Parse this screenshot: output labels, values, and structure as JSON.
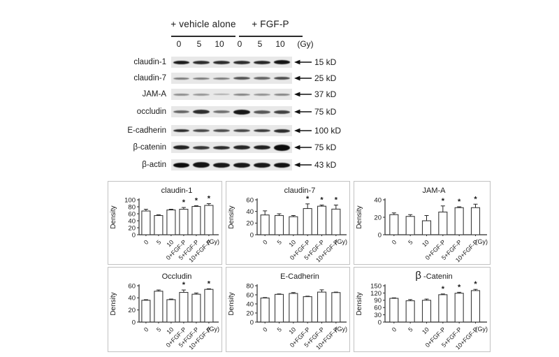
{
  "blot": {
    "group_labels": [
      "+ vehicle alone",
      "+ FGF-P"
    ],
    "doses": [
      "0",
      "5",
      "10",
      "0",
      "5",
      "10"
    ],
    "dose_unit": "(Gy)",
    "rows": [
      {
        "label": "claudin-1",
        "kd": "15 kD",
        "bands": [
          0.93,
          0.85,
          0.85,
          0.85,
          0.88,
          0.96
        ],
        "band_heights": [
          5,
          5,
          5,
          5,
          5,
          6
        ]
      },
      {
        "label": "claudin-7",
        "kd": "25 kD",
        "bands": [
          0.5,
          0.5,
          0.5,
          0.68,
          0.6,
          0.7
        ],
        "band_heights": [
          3,
          3,
          3,
          4,
          4,
          4
        ]
      },
      {
        "label": "JAM-A",
        "kd": "37 kD",
        "bands": [
          0.42,
          0.38,
          0.28,
          0.46,
          0.4,
          0.46
        ],
        "band_heights": [
          3,
          3,
          2,
          3,
          3,
          3
        ]
      },
      {
        "label": "occludin",
        "kd": "75 kD",
        "bands": [
          0.6,
          0.85,
          0.55,
          0.95,
          0.66,
          0.76
        ],
        "band_heights": [
          4,
          6,
          4,
          7,
          5,
          5
        ]
      },
      {
        "label": "E-cadherin",
        "kd": "100 kD",
        "bands": [
          0.85,
          0.72,
          0.7,
          0.72,
          0.78,
          0.85
        ],
        "band_heights": [
          4,
          4,
          4,
          4,
          4,
          5
        ]
      },
      {
        "label": "β-catenin",
        "kd": "75 kD",
        "bands": [
          0.9,
          0.8,
          0.85,
          0.88,
          0.9,
          1.0
        ],
        "band_heights": [
          6,
          5,
          5,
          6,
          6,
          9
        ]
      },
      {
        "label": "β-actin",
        "kd": "43 kD",
        "bands": [
          1.0,
          0.97,
          0.95,
          0.95,
          0.95,
          0.97
        ],
        "band_heights": [
          7,
          8,
          7,
          7,
          7,
          7
        ]
      }
    ]
  },
  "chart_data": [
    {
      "type": "bar",
      "title": "claudin-1",
      "ylabel": "Density",
      "xunit": "(Gy)",
      "ylim": [
        0,
        100
      ],
      "yticks": [
        0,
        20,
        40,
        60,
        80,
        100
      ],
      "categories": [
        "0",
        "5",
        "10",
        "0+FGF-P",
        "5+FGF-P",
        "10+FGF-P"
      ],
      "values": [
        68,
        55,
        71,
        73,
        81,
        84
      ],
      "errors": [
        5,
        2,
        2,
        5,
        2,
        5
      ],
      "significant": [
        false,
        false,
        false,
        true,
        true,
        true
      ]
    },
    {
      "type": "bar",
      "title": "claudin-7",
      "ylabel": "Density",
      "xunit": "(Gy)",
      "ylim": [
        0,
        60
      ],
      "yticks": [
        0,
        20,
        40,
        60
      ],
      "categories": [
        "0",
        "5",
        "10",
        "0+FGF-P",
        "5+FGF-P",
        "10+FGF-P"
      ],
      "values": [
        34,
        33,
        31,
        45,
        49,
        44
      ],
      "errors": [
        7,
        3,
        2,
        8,
        2,
        7
      ],
      "significant": [
        false,
        false,
        false,
        true,
        true,
        true
      ]
    },
    {
      "type": "bar",
      "title": "JAM-A",
      "ylabel": "Density",
      "xunit": "(Gy)",
      "ylim": [
        0,
        40
      ],
      "yticks": [
        0,
        20,
        40
      ],
      "categories": [
        "0",
        "5",
        "10",
        "0+FGF-P",
        "5+FGF-P",
        "10+FGF-P"
      ],
      "values": [
        23,
        21,
        16,
        26,
        31,
        31
      ],
      "errors": [
        2,
        2,
        6,
        7,
        1,
        4
      ],
      "significant": [
        false,
        false,
        false,
        true,
        true,
        true
      ]
    },
    {
      "type": "bar",
      "title": "Occludin",
      "ylabel": "Density",
      "xunit": "(Gy)",
      "ylim": [
        0,
        60
      ],
      "yticks": [
        0,
        20,
        40,
        60
      ],
      "categories": [
        "0",
        "5",
        "10",
        "0+FGF-P",
        "5+FGF-P",
        "10+FGF-P"
      ],
      "values": [
        36,
        51,
        37,
        49,
        46,
        54
      ],
      "errors": [
        1,
        2,
        1,
        4,
        2,
        1
      ],
      "significant": [
        false,
        false,
        false,
        true,
        false,
        true
      ]
    },
    {
      "type": "bar",
      "title": "E-Cadherin",
      "ylabel": "Density",
      "xunit": "(Gy)",
      "ylim": [
        0,
        80
      ],
      "yticks": [
        0,
        20,
        40,
        60,
        80
      ],
      "categories": [
        "0",
        "5",
        "10",
        "0+FGF-P",
        "5+FGF-P",
        "10+FGF-P"
      ],
      "values": [
        53,
        61,
        63,
        56,
        66,
        65
      ],
      "errors": [
        1,
        1,
        2,
        1,
        5,
        1
      ],
      "significant": [
        false,
        false,
        false,
        false,
        false,
        false
      ]
    },
    {
      "type": "bar",
      "title": "β -Catenin",
      "ylabel": "Density",
      "xunit": "(Gy)",
      "ylim": [
        0,
        150
      ],
      "yticks": [
        0,
        30,
        60,
        90,
        120,
        150
      ],
      "categories": [
        "0",
        "5",
        "10",
        "0+FGF-P",
        "5+FGF-P",
        "10+FGF-P"
      ],
      "values": [
        98,
        88,
        90,
        113,
        119,
        130
      ],
      "errors": [
        2,
        5,
        5,
        3,
        4,
        5
      ],
      "significant": [
        false,
        false,
        false,
        true,
        true,
        true
      ]
    }
  ]
}
